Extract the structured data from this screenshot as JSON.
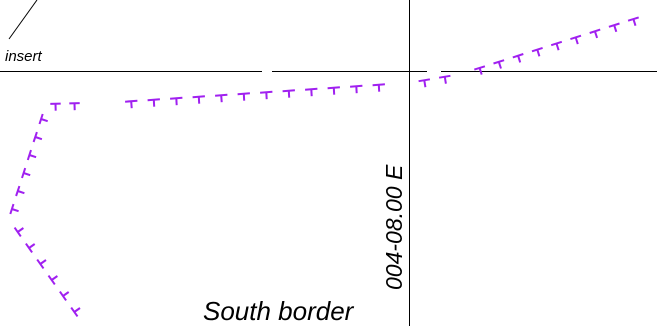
{
  "labels": {
    "insert": "insert",
    "south_border": "South border",
    "coordinate": "004-08.00 E"
  },
  "colors": {
    "background": "#ffffff",
    "linework": "#000000",
    "border_symbol": "#a020f0"
  }
}
